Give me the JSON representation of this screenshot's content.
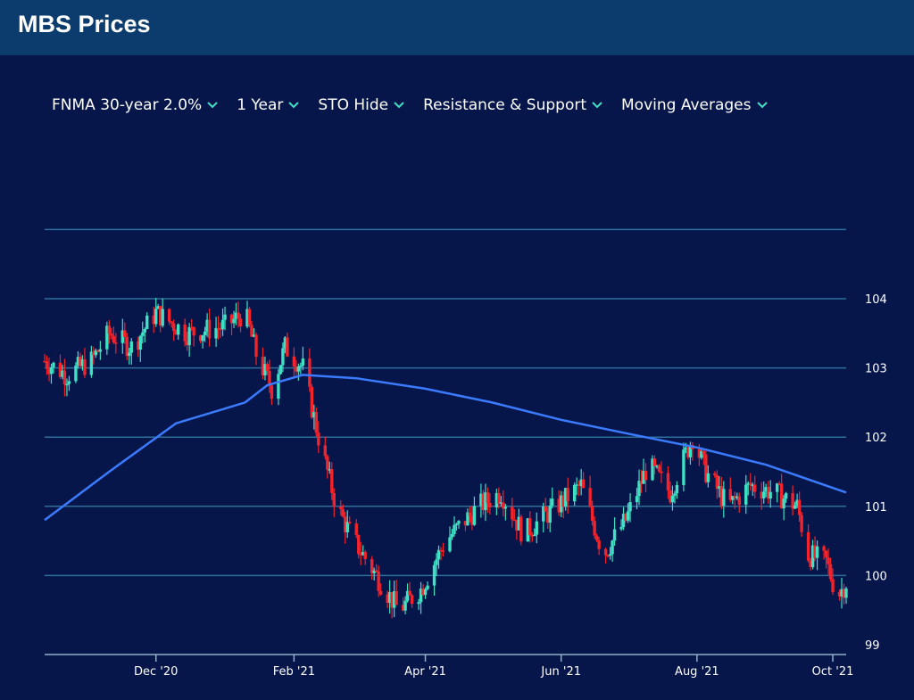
{
  "app": {
    "title": "MBS Prices"
  },
  "toolbar": {
    "items": [
      {
        "label": "FNMA 30-year 2.0%"
      },
      {
        "label": "1 Year"
      },
      {
        "label": "STO Hide"
      },
      {
        "label": "Resistance & Support"
      },
      {
        "label": "Moving Averages"
      }
    ]
  },
  "colors": {
    "up": "#3fe0c4",
    "down": "#f2232b",
    "ma": "#3b7bff",
    "grid": "#2e6e9a",
    "axis": "#8fb0c8",
    "chevron": "#3fe0c4"
  },
  "chart_data": {
    "type": "candlestick",
    "ylim": [
      99,
      105
    ],
    "y_ticks": [
      99,
      100,
      101,
      102,
      103,
      104
    ],
    "x_ticks": [
      {
        "label": "Dec '20",
        "date": "2020-12-01"
      },
      {
        "label": "Feb '21",
        "date": "2021-02-01"
      },
      {
        "label": "Apr '21",
        "date": "2021-04-01"
      },
      {
        "label": "Jun '21",
        "date": "2021-06-01"
      },
      {
        "label": "Aug '21",
        "date": "2021-08-01"
      },
      {
        "label": "Oct '21",
        "date": "2021-10-01"
      }
    ],
    "xlim": [
      "2020-10-12",
      "2021-10-07"
    ],
    "price_path": [
      [
        "2020-10-12",
        103.1
      ],
      [
        "2020-10-22",
        102.9
      ],
      [
        "2020-11-02",
        103.1
      ],
      [
        "2020-11-10",
        103.5
      ],
      [
        "2020-11-20",
        103.3
      ],
      [
        "2020-12-01",
        103.8
      ],
      [
        "2020-12-15",
        103.5
      ],
      [
        "2021-01-01",
        103.6
      ],
      [
        "2021-01-10",
        103.8
      ],
      [
        "2021-01-15",
        103.2
      ],
      [
        "2021-01-22",
        102.7
      ],
      [
        "2021-01-28",
        103.3
      ],
      [
        "2021-02-05",
        103.0
      ],
      [
        "2021-02-12",
        102.0
      ],
      [
        "2021-02-20",
        101.0
      ],
      [
        "2021-02-28",
        100.5
      ],
      [
        "2021-03-10",
        100.0
      ],
      [
        "2021-03-20",
        99.5
      ],
      [
        "2021-03-30",
        99.8
      ],
      [
        "2021-04-10",
        100.5
      ],
      [
        "2021-04-25",
        101.0
      ],
      [
        "2021-05-05",
        101.2
      ],
      [
        "2021-05-15",
        100.6
      ],
      [
        "2021-05-30",
        101.0
      ],
      [
        "2021-06-10",
        101.3
      ],
      [
        "2021-06-20",
        100.3
      ],
      [
        "2021-06-30",
        100.8
      ],
      [
        "2021-07-10",
        101.6
      ],
      [
        "2021-07-20",
        101.2
      ],
      [
        "2021-07-30",
        102.0
      ],
      [
        "2021-08-05",
        101.5
      ],
      [
        "2021-08-15",
        101.0
      ],
      [
        "2021-08-25",
        101.3
      ],
      [
        "2021-09-05",
        101.2
      ],
      [
        "2021-09-15",
        101.0
      ],
      [
        "2021-09-20",
        100.3
      ],
      [
        "2021-09-28",
        100.2
      ],
      [
        "2021-10-03",
        99.7
      ],
      [
        "2021-10-07",
        99.9
      ]
    ],
    "moving_average": [
      [
        "2020-10-12",
        100.8
      ],
      [
        "2020-11-10",
        101.5
      ],
      [
        "2020-12-10",
        102.2
      ],
      [
        "2021-01-10",
        102.5
      ],
      [
        "2021-01-20",
        102.75
      ],
      [
        "2021-02-05",
        102.9
      ],
      [
        "2021-03-01",
        102.85
      ],
      [
        "2021-04-01",
        102.7
      ],
      [
        "2021-05-01",
        102.5
      ],
      [
        "2021-06-01",
        102.25
      ],
      [
        "2021-07-01",
        102.05
      ],
      [
        "2021-08-01",
        101.85
      ],
      [
        "2021-09-01",
        101.6
      ],
      [
        "2021-10-07",
        101.2
      ]
    ]
  }
}
